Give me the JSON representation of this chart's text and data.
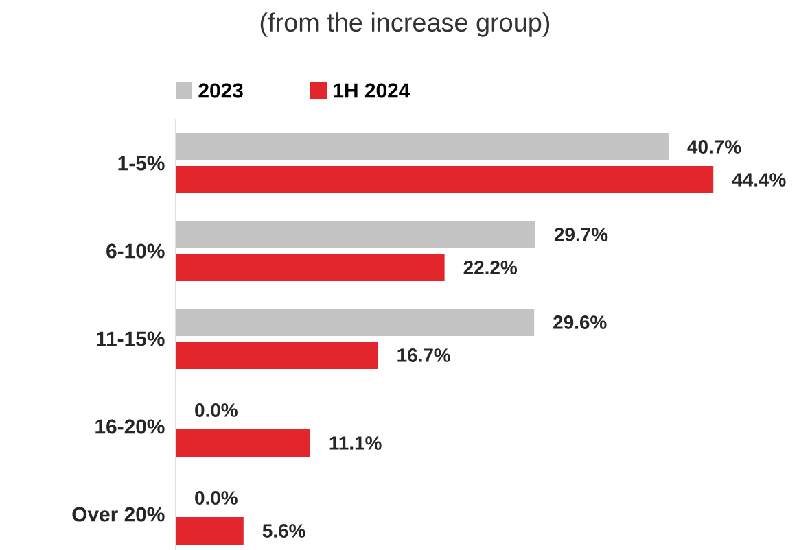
{
  "chart_data": {
    "type": "bar",
    "orientation": "horizontal",
    "subtitle": "(from the increase group)",
    "categories": [
      "1-5%",
      "6-10%",
      "11-15%",
      "16-20%",
      "Over 20%"
    ],
    "series": [
      {
        "name": "2023",
        "color": "#c4c4c4",
        "values": [
          40.7,
          29.7,
          29.6,
          0.0,
          0.0
        ],
        "value_labels": [
          "40.7%",
          "29.7%",
          "29.6%",
          "0.0%",
          "0.0%"
        ]
      },
      {
        "name": "1H 2024",
        "color": "#e3262b",
        "values": [
          44.4,
          22.2,
          16.7,
          11.1,
          5.6
        ],
        "value_labels": [
          "44.4%",
          "22.2%",
          "16.7%",
          "11.1%",
          "5.6%"
        ]
      }
    ],
    "legend": "top left"
  }
}
